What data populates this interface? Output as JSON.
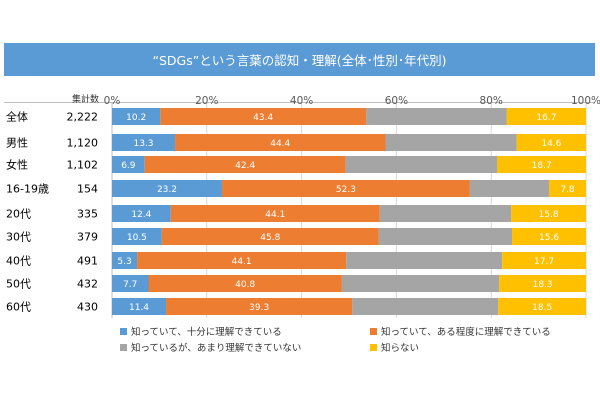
{
  "chart_data": {
    "type": "bar",
    "orientation": "horizontal",
    "stacked": true,
    "title": "“SDGs”という言葉の認知・理解(全体･性別･年代別)",
    "count_header": "集計数",
    "xlim": [
      0,
      100
    ],
    "x_ticks": [
      "0%",
      "20%",
      "40%",
      "60%",
      "80%",
      "100%"
    ],
    "categories": [
      "全体",
      "男性",
      "女性",
      "16-19歳",
      "20代",
      "30代",
      "40代",
      "50代",
      "60代"
    ],
    "counts": [
      "2,222",
      "1,120",
      "1,102",
      "154",
      "335",
      "379",
      "491",
      "432",
      "430"
    ],
    "series": [
      {
        "name": "知っていて、十分に理解できている",
        "color": "#5b9bd5",
        "label_color": "#ffffff",
        "values": [
          10.2,
          13.3,
          6.9,
          23.2,
          12.4,
          10.5,
          5.3,
          7.7,
          11.4
        ],
        "labels": [
          "10.2",
          "13.3",
          "6.9",
          "23.2",
          "12.4",
          "10.5",
          "5.3",
          "7.7",
          "11.4"
        ]
      },
      {
        "name": "知っていて、ある程度に理解できている",
        "color": "#ed7d31",
        "label_color": "#ffffff",
        "values": [
          43.4,
          44.4,
          42.4,
          52.3,
          44.1,
          45.8,
          44.1,
          40.8,
          39.3
        ],
        "labels": [
          "43.4",
          "44.4",
          "42.4",
          "52.3",
          "44.1",
          "45.8",
          "44.1",
          "40.8",
          "39.3"
        ]
      },
      {
        "name": "知っているが、あまり理解できていない",
        "color": "#a5a5a5",
        "label_color": "#ffffff",
        "values": [
          29.7,
          27.7,
          32.0,
          16.7,
          27.7,
          28.1,
          32.9,
          33.2,
          30.8
        ],
        "labels": [
          "",
          "",
          "",
          "",
          "",
          "",
          "",
          "",
          ""
        ]
      },
      {
        "name": "知らない",
        "color": "#ffc000",
        "label_color": "#333333",
        "values": [
          16.7,
          14.6,
          18.7,
          7.8,
          15.8,
          15.6,
          17.7,
          18.3,
          18.5
        ],
        "labels": [
          "16.7",
          "14.6",
          "18.7",
          "7.8",
          "15.8",
          "15.6",
          "17.7",
          "18.3",
          "18.5"
        ]
      }
    ],
    "legend_position": "bottom",
    "grid": true
  }
}
